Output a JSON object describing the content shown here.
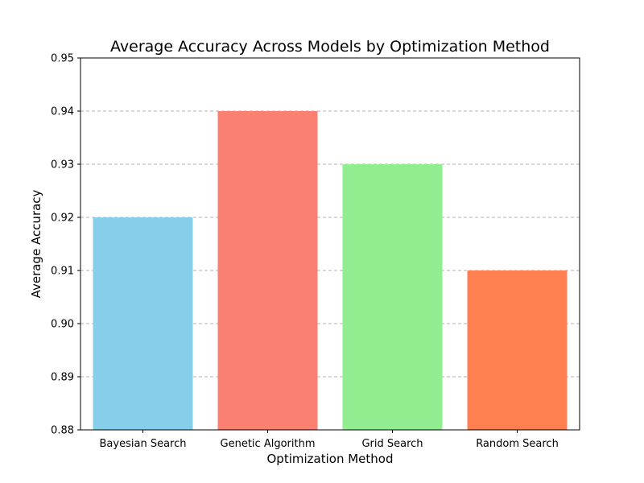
{
  "chart_data": {
    "type": "bar",
    "title": "Average Accuracy Across Models by Optimization Method",
    "xlabel": "Optimization Method",
    "ylabel": "Average Accuracy",
    "categories": [
      "Bayesian Search",
      "Genetic Algorithm",
      "Grid Search",
      "Random Search"
    ],
    "values": [
      0.92,
      0.94,
      0.93,
      0.91
    ],
    "colors": [
      "#87ceeb",
      "#fa8072",
      "#90ee90",
      "#ff7f50"
    ],
    "ylim": [
      0.88,
      0.95
    ],
    "yticks": [
      0.88,
      0.89,
      0.9,
      0.91,
      0.92,
      0.93,
      0.94,
      0.95
    ],
    "ytick_labels": [
      "0.88",
      "0.89",
      "0.90",
      "0.91",
      "0.92",
      "0.93",
      "0.94",
      "0.95"
    ],
    "grid": {
      "axis": "y",
      "style": "dashed"
    },
    "legend": "none"
  }
}
